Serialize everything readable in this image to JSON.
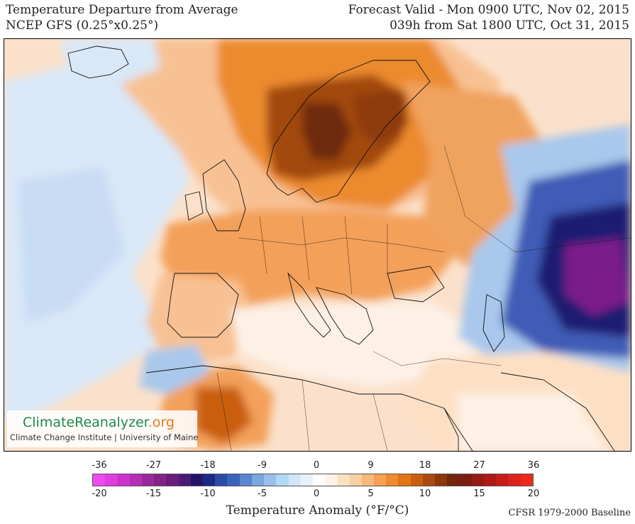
{
  "header": {
    "title": "Temperature Departure from Average",
    "model": "NCEP GFS (0.25°x0.25°)",
    "valid": "Forecast Valid - Mon 0900 UTC, Nov 02, 2015",
    "lead": "039h from Sat 1800 UTC, Oct 31, 2015"
  },
  "logo": {
    "name_main": "ClimateReanalyzer",
    "name_suffix": ".org",
    "subtitle": "Climate Change Institute | University of Maine"
  },
  "legend": {
    "fahrenheit_ticks": [
      "-36",
      "-27",
      "-18",
      "-9",
      "0",
      "9",
      "18",
      "27",
      "36"
    ],
    "celsius_ticks": [
      "-20",
      "-15",
      "-10",
      "-5",
      "0",
      "5",
      "10",
      "15",
      "20"
    ],
    "title": "Temperature Anomaly (°F/°C)",
    "baseline": "CFSR 1979-2000 Baseline",
    "colors": [
      "#f04af0",
      "#e03ee0",
      "#cc33cc",
      "#b52eb5",
      "#9c279c",
      "#84228a",
      "#6b1d7c",
      "#4c1a74",
      "#241466",
      "#1a2a86",
      "#2b4aa8",
      "#3b62be",
      "#5a86cf",
      "#7aa6de",
      "#98c0ea",
      "#b5d6f4",
      "#d0e6fa",
      "#e8f2fd",
      "#ffffff",
      "#fff2e6",
      "#fde0c4",
      "#fbcfa0",
      "#f8b87a",
      "#f5a052",
      "#f08a2a",
      "#e27412",
      "#c95e10",
      "#ac4a0e",
      "#8e360c",
      "#74250c",
      "#7a1d14",
      "#961a16",
      "#b01a18",
      "#c81c1a",
      "#dc221c",
      "#f02a1a"
    ]
  },
  "map": {
    "colors": {
      "sea_warm": "#fbe1cb",
      "sea_blue": "#d9e8f8",
      "warm_light": "#f8c193",
      "warm_mid": "#f3a05a",
      "warm_strong": "#ec8a2e",
      "warm_brown": "#a2480c",
      "warm_dark": "#6e2a0c",
      "cold_light": "#a9c8ec",
      "cold_mid": "#3f5bb6",
      "cold_dark": "#1d1a72",
      "cold_purple": "#7a1a8a",
      "coast": "#111111"
    }
  }
}
